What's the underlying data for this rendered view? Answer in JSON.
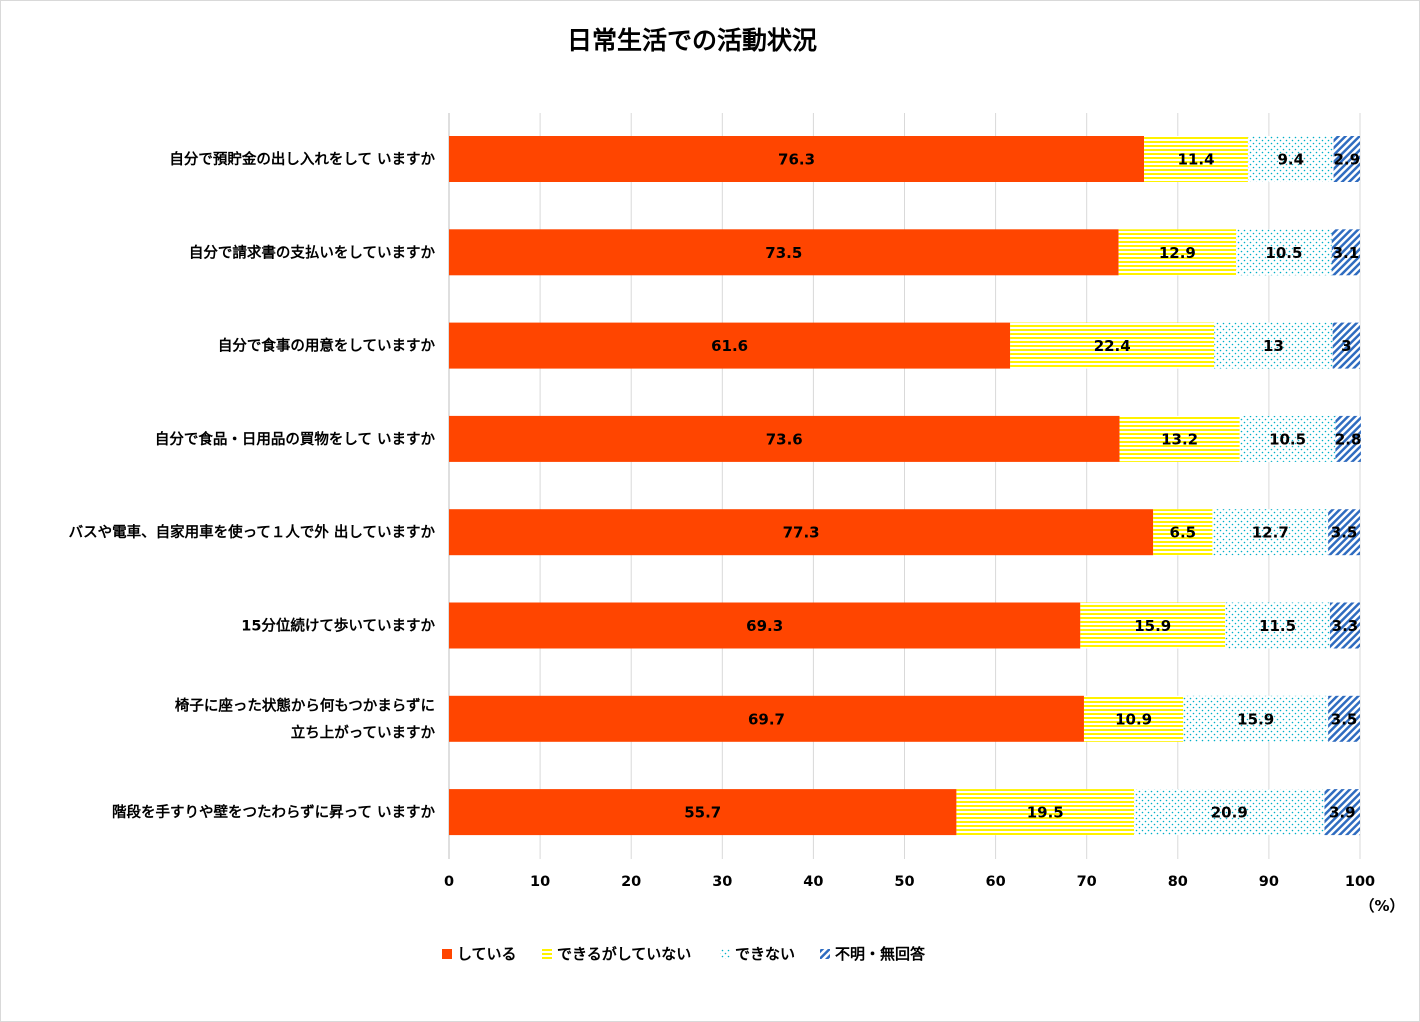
{
  "chart_data": {
    "type": "bar",
    "orientation": "horizontal",
    "stacked": true,
    "title": "日常生活での活動状況",
    "unit": "（%）",
    "xlim": [
      0,
      100
    ],
    "x_ticks": [
      0,
      10,
      20,
      30,
      40,
      50,
      60,
      70,
      80,
      90,
      100
    ],
    "grid": "vertical",
    "legend_position": "bottom",
    "categories": [
      [
        "自分で預貯金の出し入れをして いますか"
      ],
      [
        "自分で請求書の支払いをしていますか"
      ],
      [
        "自分で食事の用意をしていますか"
      ],
      [
        "自分で食品・日用品の買物をして いますか"
      ],
      [
        "バスや電車、自家用車を使って１人で外 出していますか"
      ],
      [
        "15分位続けて歩いていますか"
      ],
      [
        "椅子に座った状態から何もつかまらずに",
        "立ち上がっていますか"
      ],
      [
        "階段を手すりや壁をつたわらずに昇って いますか"
      ]
    ],
    "series": [
      {
        "name": "している",
        "color": "#FF4500",
        "pattern": "solid",
        "values": [
          76.3,
          73.5,
          61.6,
          73.6,
          77.3,
          69.3,
          69.7,
          55.7
        ],
        "labels": [
          "76.3",
          "73.5",
          "61.6",
          "73.6",
          "77.3",
          "69.3",
          "69.7",
          "55.7"
        ]
      },
      {
        "name": "できるがしていない",
        "color": "#FFF200",
        "pattern": "horizontal-stripes",
        "values": [
          11.4,
          12.9,
          22.4,
          13.2,
          6.5,
          15.9,
          10.9,
          19.5
        ],
        "labels": [
          "11.4",
          "12.9",
          "22.4",
          "13.2",
          "6.5",
          "15.9",
          "10.9",
          "19.5"
        ]
      },
      {
        "name": "できない",
        "color": "#00B0C8",
        "pattern": "dots",
        "values": [
          9.4,
          10.5,
          13,
          10.5,
          12.7,
          11.5,
          15.9,
          20.9
        ],
        "labels": [
          "9.4",
          "10.5",
          "13",
          "10.5",
          "12.7",
          "11.5",
          "15.9",
          "20.9"
        ]
      },
      {
        "name": "不明・無回答",
        "color": "#2F6CC0",
        "pattern": "diagonal-stripes",
        "values": [
          2.9,
          3.1,
          3,
          2.8,
          3.5,
          3.3,
          3.5,
          3.9
        ],
        "labels": [
          "2.9",
          "3.1",
          "3",
          "2.8",
          "3.5",
          "3.3",
          "3.5",
          "3.9"
        ]
      }
    ]
  }
}
